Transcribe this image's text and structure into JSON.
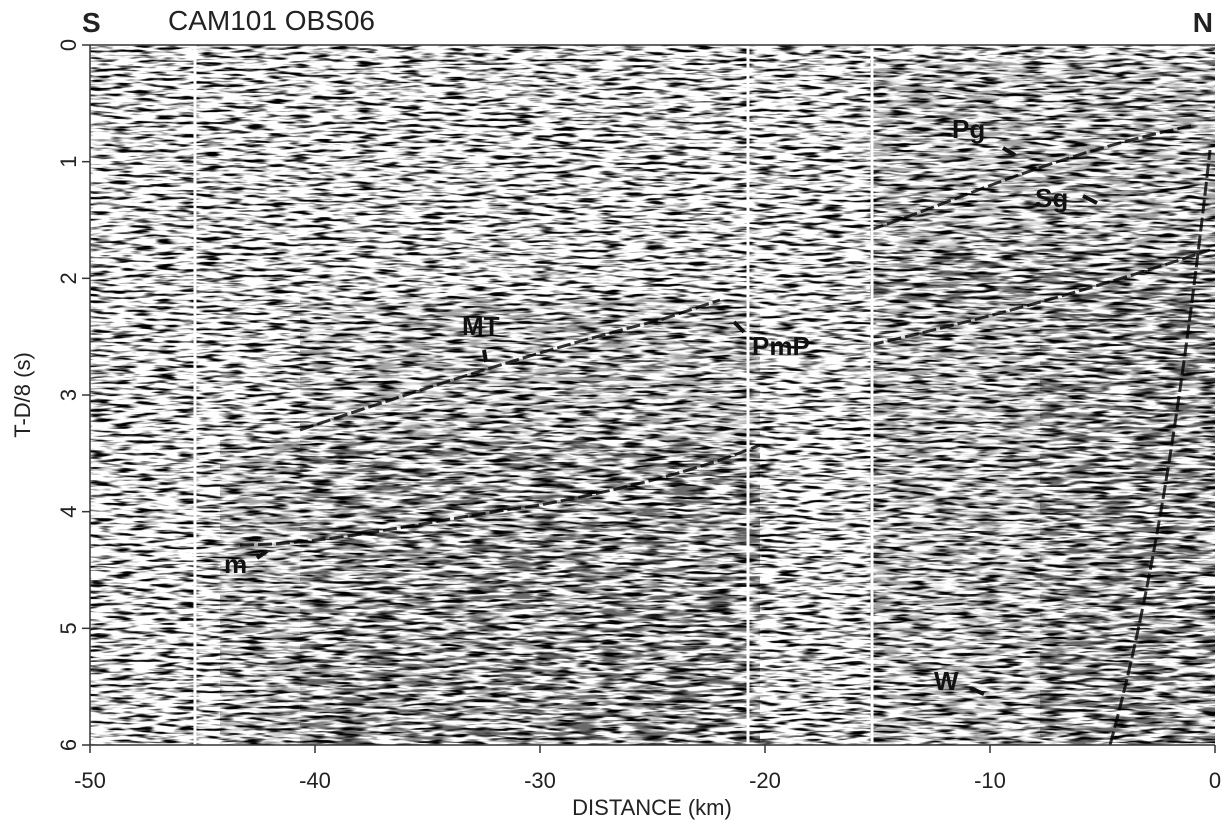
{
  "chart_data": {
    "type": "seismic",
    "title": "CAM101 OBS06",
    "left_label": "S",
    "right_label": "N",
    "x_label": "DISTANCE (km)",
    "y_label": "T-D/8 (s)",
    "xlim": [
      -50,
      0
    ],
    "xticks": [
      -50,
      -40,
      -30,
      -20,
      -10,
      0
    ],
    "ylim": [
      0,
      6
    ],
    "yticks": [
      0,
      1,
      2,
      3,
      4,
      5,
      6
    ],
    "y_inverted": true,
    "annotations": [
      "Pg",
      "Sg",
      "MT",
      "PmP",
      "m",
      "W"
    ]
  }
}
